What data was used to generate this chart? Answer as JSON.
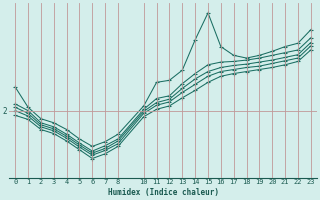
{
  "xlabel": "Humidex (Indice chaleur)",
  "ylabel": "",
  "background_color": "#d4eeeb",
  "line_color": "#1a6e62",
  "grid_color": "#c09898",
  "text_color": "#1a5a50",
  "xlim": [
    -0.5,
    23.5
  ],
  "ylim": [
    1.0,
    3.6
  ],
  "ytick_val": 2.0,
  "xticks": [
    0,
    1,
    2,
    3,
    4,
    5,
    6,
    7,
    8,
    10,
    11,
    12,
    13,
    14,
    15,
    16,
    17,
    18,
    19,
    20,
    21,
    22,
    23
  ],
  "lines_x": [
    [
      0,
      1,
      2,
      3,
      4,
      5,
      6,
      7,
      8,
      10,
      11,
      12,
      13,
      14,
      15,
      16,
      17,
      18,
      19,
      20,
      21,
      22,
      23
    ],
    [
      0,
      1,
      2,
      3,
      4,
      5,
      6,
      7,
      8,
      10,
      11,
      12,
      13,
      14,
      15,
      16,
      17,
      18,
      19,
      20,
      21,
      22,
      23
    ],
    [
      0,
      1,
      2,
      3,
      4,
      5,
      6,
      7,
      8,
      10,
      11,
      12,
      13,
      14,
      15,
      16,
      17,
      18,
      19,
      20,
      21,
      22,
      23
    ],
    [
      0,
      1,
      2,
      3,
      4,
      5,
      6,
      7,
      8,
      10,
      11,
      12,
      13,
      14,
      15,
      16,
      17,
      18,
      19,
      20,
      21,
      22,
      23
    ],
    [
      0,
      1,
      2,
      3,
      4,
      5,
      6,
      7,
      8,
      10,
      11,
      12,
      13,
      14,
      15,
      16,
      17,
      18,
      19,
      20,
      21,
      22,
      23
    ]
  ],
  "lines_y": [
    [
      2.35,
      2.05,
      1.88,
      1.82,
      1.72,
      1.58,
      1.47,
      1.54,
      1.65,
      2.07,
      2.42,
      2.45,
      2.6,
      3.05,
      3.45,
      2.95,
      2.82,
      2.78,
      2.82,
      2.88,
      2.95,
      3.0,
      3.2
    ],
    [
      2.1,
      2.0,
      1.82,
      1.76,
      1.65,
      1.52,
      1.4,
      1.48,
      1.58,
      2.02,
      2.18,
      2.22,
      2.4,
      2.55,
      2.68,
      2.72,
      2.73,
      2.75,
      2.78,
      2.82,
      2.86,
      2.9,
      3.08
    ],
    [
      2.05,
      1.96,
      1.79,
      1.73,
      1.62,
      1.49,
      1.37,
      1.44,
      1.55,
      1.99,
      2.12,
      2.17,
      2.33,
      2.47,
      2.58,
      2.64,
      2.67,
      2.69,
      2.72,
      2.75,
      2.79,
      2.83,
      3.01
    ],
    [
      2.0,
      1.92,
      1.76,
      1.7,
      1.59,
      1.46,
      1.34,
      1.41,
      1.51,
      1.96,
      2.08,
      2.13,
      2.27,
      2.39,
      2.51,
      2.58,
      2.61,
      2.64,
      2.66,
      2.7,
      2.74,
      2.78,
      2.96
    ],
    [
      1.93,
      1.87,
      1.72,
      1.66,
      1.55,
      1.42,
      1.29,
      1.36,
      1.47,
      1.91,
      2.02,
      2.07,
      2.19,
      2.3,
      2.42,
      2.51,
      2.55,
      2.58,
      2.61,
      2.64,
      2.68,
      2.73,
      2.9
    ]
  ]
}
